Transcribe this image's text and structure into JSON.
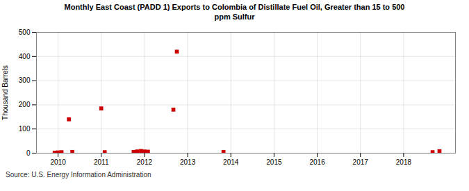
{
  "chart_data": {
    "type": "scatter",
    "title": "Monthly East Coast (PADD 1) Exports to Colombia of Distillate Fuel Oil, Greater than 15 to 500\nppm Sulfur",
    "ylabel": "Thousand Barrels",
    "source": "Source: U.S. Energy Information Administration",
    "x": [
      2009.92,
      2010.0,
      2010.08,
      2010.25,
      2010.33,
      2011.0,
      2011.08,
      2011.75,
      2011.83,
      2011.92,
      2012.0,
      2012.08,
      2012.67,
      2012.75,
      2013.83,
      2018.67,
      2018.83
    ],
    "values": [
      2,
      3,
      4,
      140,
      5,
      185,
      4,
      5,
      7,
      9,
      7,
      6,
      180,
      420,
      5,
      4,
      8
    ],
    "color": "#cc0000",
    "marker": "square",
    "xlim": [
      2009.5,
      2019.2
    ],
    "xticks": [
      2010,
      2011,
      2012,
      2013,
      2014,
      2015,
      2016,
      2017,
      2018
    ],
    "ylim": [
      0,
      500
    ],
    "yticks": [
      0,
      100,
      200,
      300,
      400,
      500
    ],
    "grid": true
  }
}
